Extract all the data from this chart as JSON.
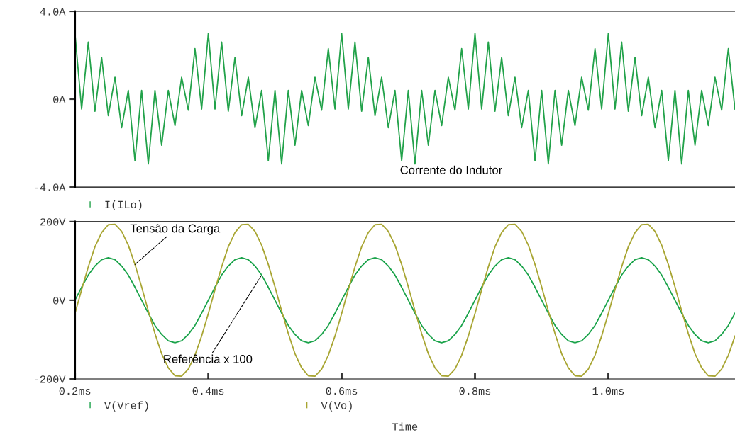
{
  "chart_data": [
    {
      "type": "line",
      "tick_labels": "y",
      "legend": "bottom left",
      "grid": false,
      "annotations": [
        "Corrente do Indutor"
      ],
      "x": [
        0.2,
        0.21,
        0.22,
        0.23,
        0.24,
        0.25,
        0.26,
        0.27,
        0.28,
        0.29,
        0.3,
        0.31,
        0.32,
        0.33,
        0.34,
        0.35,
        0.36,
        0.37,
        0.38,
        0.39,
        0.4,
        0.41,
        0.42,
        0.43,
        0.44,
        0.45,
        0.46,
        0.47,
        0.48,
        0.49,
        0.5,
        0.51,
        0.52,
        0.53,
        0.54,
        0.55,
        0.56,
        0.57,
        0.58,
        0.59,
        0.6,
        0.61,
        0.62,
        0.63,
        0.64,
        0.65,
        0.66,
        0.67,
        0.68,
        0.69,
        0.7,
        0.71,
        0.72,
        0.73,
        0.74,
        0.75,
        0.76,
        0.77,
        0.78,
        0.79,
        0.8,
        0.81,
        0.82,
        0.83,
        0.84,
        0.85,
        0.86,
        0.87,
        0.88,
        0.89,
        0.9,
        0.91,
        0.92,
        0.93,
        0.94,
        0.95,
        0.96,
        0.97,
        0.98,
        0.99,
        1.0,
        1.01,
        1.02,
        1.03,
        1.04,
        1.05,
        1.06,
        1.07,
        1.08,
        1.09,
        1.1,
        1.11,
        1.12,
        1.13,
        1.14,
        1.15,
        1.16,
        1.17,
        1.18,
        1.19
      ],
      "xlim": [
        0.2,
        1.19
      ],
      "ylim": [
        -4,
        4
      ],
      "yticks": [
        {
          "value": -4,
          "label": "-4.0A"
        },
        {
          "value": 0,
          "label": "0A"
        },
        {
          "value": 4,
          "label": "4.0A"
        }
      ],
      "series": [
        {
          "name": "I(ILo)",
          "color": "#22a24a",
          "values": [
            3.0,
            -0.45,
            2.6,
            -0.55,
            1.9,
            -0.75,
            1.0,
            -1.3,
            0.4,
            -2.8,
            0.4,
            -2.95,
            0.4,
            -2.1,
            0.4,
            -1.2,
            1.0,
            -0.5,
            2.3,
            -0.45,
            3.0,
            -0.45,
            2.6,
            -0.55,
            1.9,
            -0.75,
            1.0,
            -1.3,
            0.4,
            -2.8,
            0.4,
            -2.95,
            0.4,
            -2.1,
            0.4,
            -1.2,
            1.0,
            -0.5,
            2.3,
            -0.45,
            3.0,
            -0.45,
            2.6,
            -0.55,
            1.9,
            -0.75,
            1.0,
            -1.3,
            0.4,
            -2.8,
            0.4,
            -2.95,
            0.4,
            -2.1,
            0.4,
            -1.2,
            1.0,
            -0.5,
            2.3,
            -0.45,
            3.0,
            -0.45,
            2.6,
            -0.55,
            1.9,
            -0.75,
            1.0,
            -1.3,
            0.4,
            -2.8,
            0.4,
            -2.95,
            0.4,
            -2.1,
            0.4,
            -1.2,
            1.0,
            -0.5,
            2.3,
            -0.45,
            3.0,
            -0.45,
            2.6,
            -0.55,
            1.9,
            -0.75,
            1.0,
            -1.3,
            0.4,
            -2.8,
            0.4,
            -2.95,
            0.4,
            -2.1,
            0.4,
            -1.2,
            1.0,
            -0.5,
            2.3,
            -0.45
          ]
        }
      ]
    },
    {
      "type": "line",
      "legend": "bottom left",
      "grid": false,
      "xlabel": "Time",
      "annotations": [
        {
          "text": "Tensão da Carga",
          "x": 0.29,
          "y": 91
        },
        {
          "text": "Referência x 100",
          "x": 0.48,
          "y": 64
        }
      ],
      "x": [
        0.2,
        0.21,
        0.22,
        0.23,
        0.24,
        0.25,
        0.26,
        0.27,
        0.28,
        0.29,
        0.3,
        0.31,
        0.32,
        0.33,
        0.34,
        0.35,
        0.36,
        0.37,
        0.38,
        0.39,
        0.4,
        0.41,
        0.42,
        0.43,
        0.44,
        0.45,
        0.46,
        0.47,
        0.48,
        0.49,
        0.5,
        0.51,
        0.52,
        0.53,
        0.54,
        0.55,
        0.56,
        0.57,
        0.58,
        0.59,
        0.6,
        0.61,
        0.62,
        0.63,
        0.64,
        0.65,
        0.66,
        0.67,
        0.68,
        0.69,
        0.7,
        0.71,
        0.72,
        0.73,
        0.74,
        0.75,
        0.76,
        0.77,
        0.78,
        0.79,
        0.8,
        0.81,
        0.82,
        0.83,
        0.84,
        0.85,
        0.86,
        0.87,
        0.88,
        0.89,
        0.9,
        0.91,
        0.92,
        0.93,
        0.94,
        0.95,
        0.96,
        0.97,
        0.98,
        0.99,
        1.0,
        1.01,
        1.02,
        1.03,
        1.04,
        1.05,
        1.06,
        1.07,
        1.08,
        1.09,
        1.1,
        1.11,
        1.12,
        1.13,
        1.14,
        1.15,
        1.16,
        1.17,
        1.18,
        1.19
      ],
      "xlim": [
        0.2,
        1.19
      ],
      "xticks": [
        {
          "value": 0.2,
          "label": "0.2ms"
        },
        {
          "value": 0.4,
          "label": "0.4ms"
        },
        {
          "value": 0.6,
          "label": "0.6ms"
        },
        {
          "value": 0.8,
          "label": "0.8ms"
        },
        {
          "value": 1.0,
          "label": "1.0ms"
        }
      ],
      "ylim": [
        -200,
        200
      ],
      "yticks": [
        {
          "value": -200,
          "label": "-200V"
        },
        {
          "value": 0,
          "label": "0V"
        },
        {
          "value": 200,
          "label": "200V"
        }
      ],
      "series": [
        {
          "name": "V(Vref)",
          "color": "#1aa34a",
          "values": [
            0,
            33,
            64,
            87,
            103,
            108,
            103,
            87,
            64,
            33,
            0,
            -33,
            -64,
            -87,
            -103,
            -108,
            -103,
            -87,
            -64,
            -33,
            0,
            33,
            64,
            87,
            103,
            108,
            103,
            87,
            64,
            33,
            0,
            -33,
            -64,
            -87,
            -103,
            -108,
            -103,
            -87,
            -64,
            -33,
            0,
            33,
            64,
            87,
            103,
            108,
            103,
            87,
            64,
            33,
            0,
            -33,
            -64,
            -87,
            -103,
            -108,
            -103,
            -87,
            -64,
            -33,
            0,
            33,
            64,
            87,
            103,
            108,
            103,
            87,
            64,
            33,
            0,
            -33,
            -64,
            -87,
            -103,
            -108,
            -103,
            -87,
            -64,
            -33,
            0,
            33,
            64,
            87,
            103,
            108,
            103,
            87,
            64,
            33,
            0,
            -33,
            -64,
            -87,
            -103,
            -108,
            -103,
            -87,
            -64,
            -33
          ]
        },
        {
          "name": "V(Vo)",
          "color": "#a8a532",
          "values": [
            -34,
            27,
            85,
            136,
            172,
            192,
            193,
            175,
            140,
            91,
            34,
            -27,
            -85,
            -136,
            -172,
            -192,
            -193,
            -175,
            -140,
            -91,
            -34,
            27,
            85,
            136,
            172,
            192,
            193,
            175,
            140,
            91,
            34,
            -27,
            -85,
            -136,
            -172,
            -192,
            -193,
            -175,
            -140,
            -91,
            -34,
            27,
            85,
            136,
            172,
            192,
            193,
            175,
            140,
            91,
            34,
            -27,
            -85,
            -136,
            -172,
            -192,
            -193,
            -175,
            -140,
            -91,
            -34,
            27,
            85,
            136,
            172,
            192,
            193,
            175,
            140,
            91,
            34,
            -27,
            -85,
            -136,
            -172,
            -192,
            -193,
            -175,
            -140,
            -91,
            -34,
            27,
            85,
            136,
            172,
            192,
            193,
            175,
            140,
            91,
            34,
            -27,
            -85,
            -136,
            -172,
            -192,
            -193,
            -175,
            -140,
            -91
          ]
        }
      ]
    }
  ]
}
